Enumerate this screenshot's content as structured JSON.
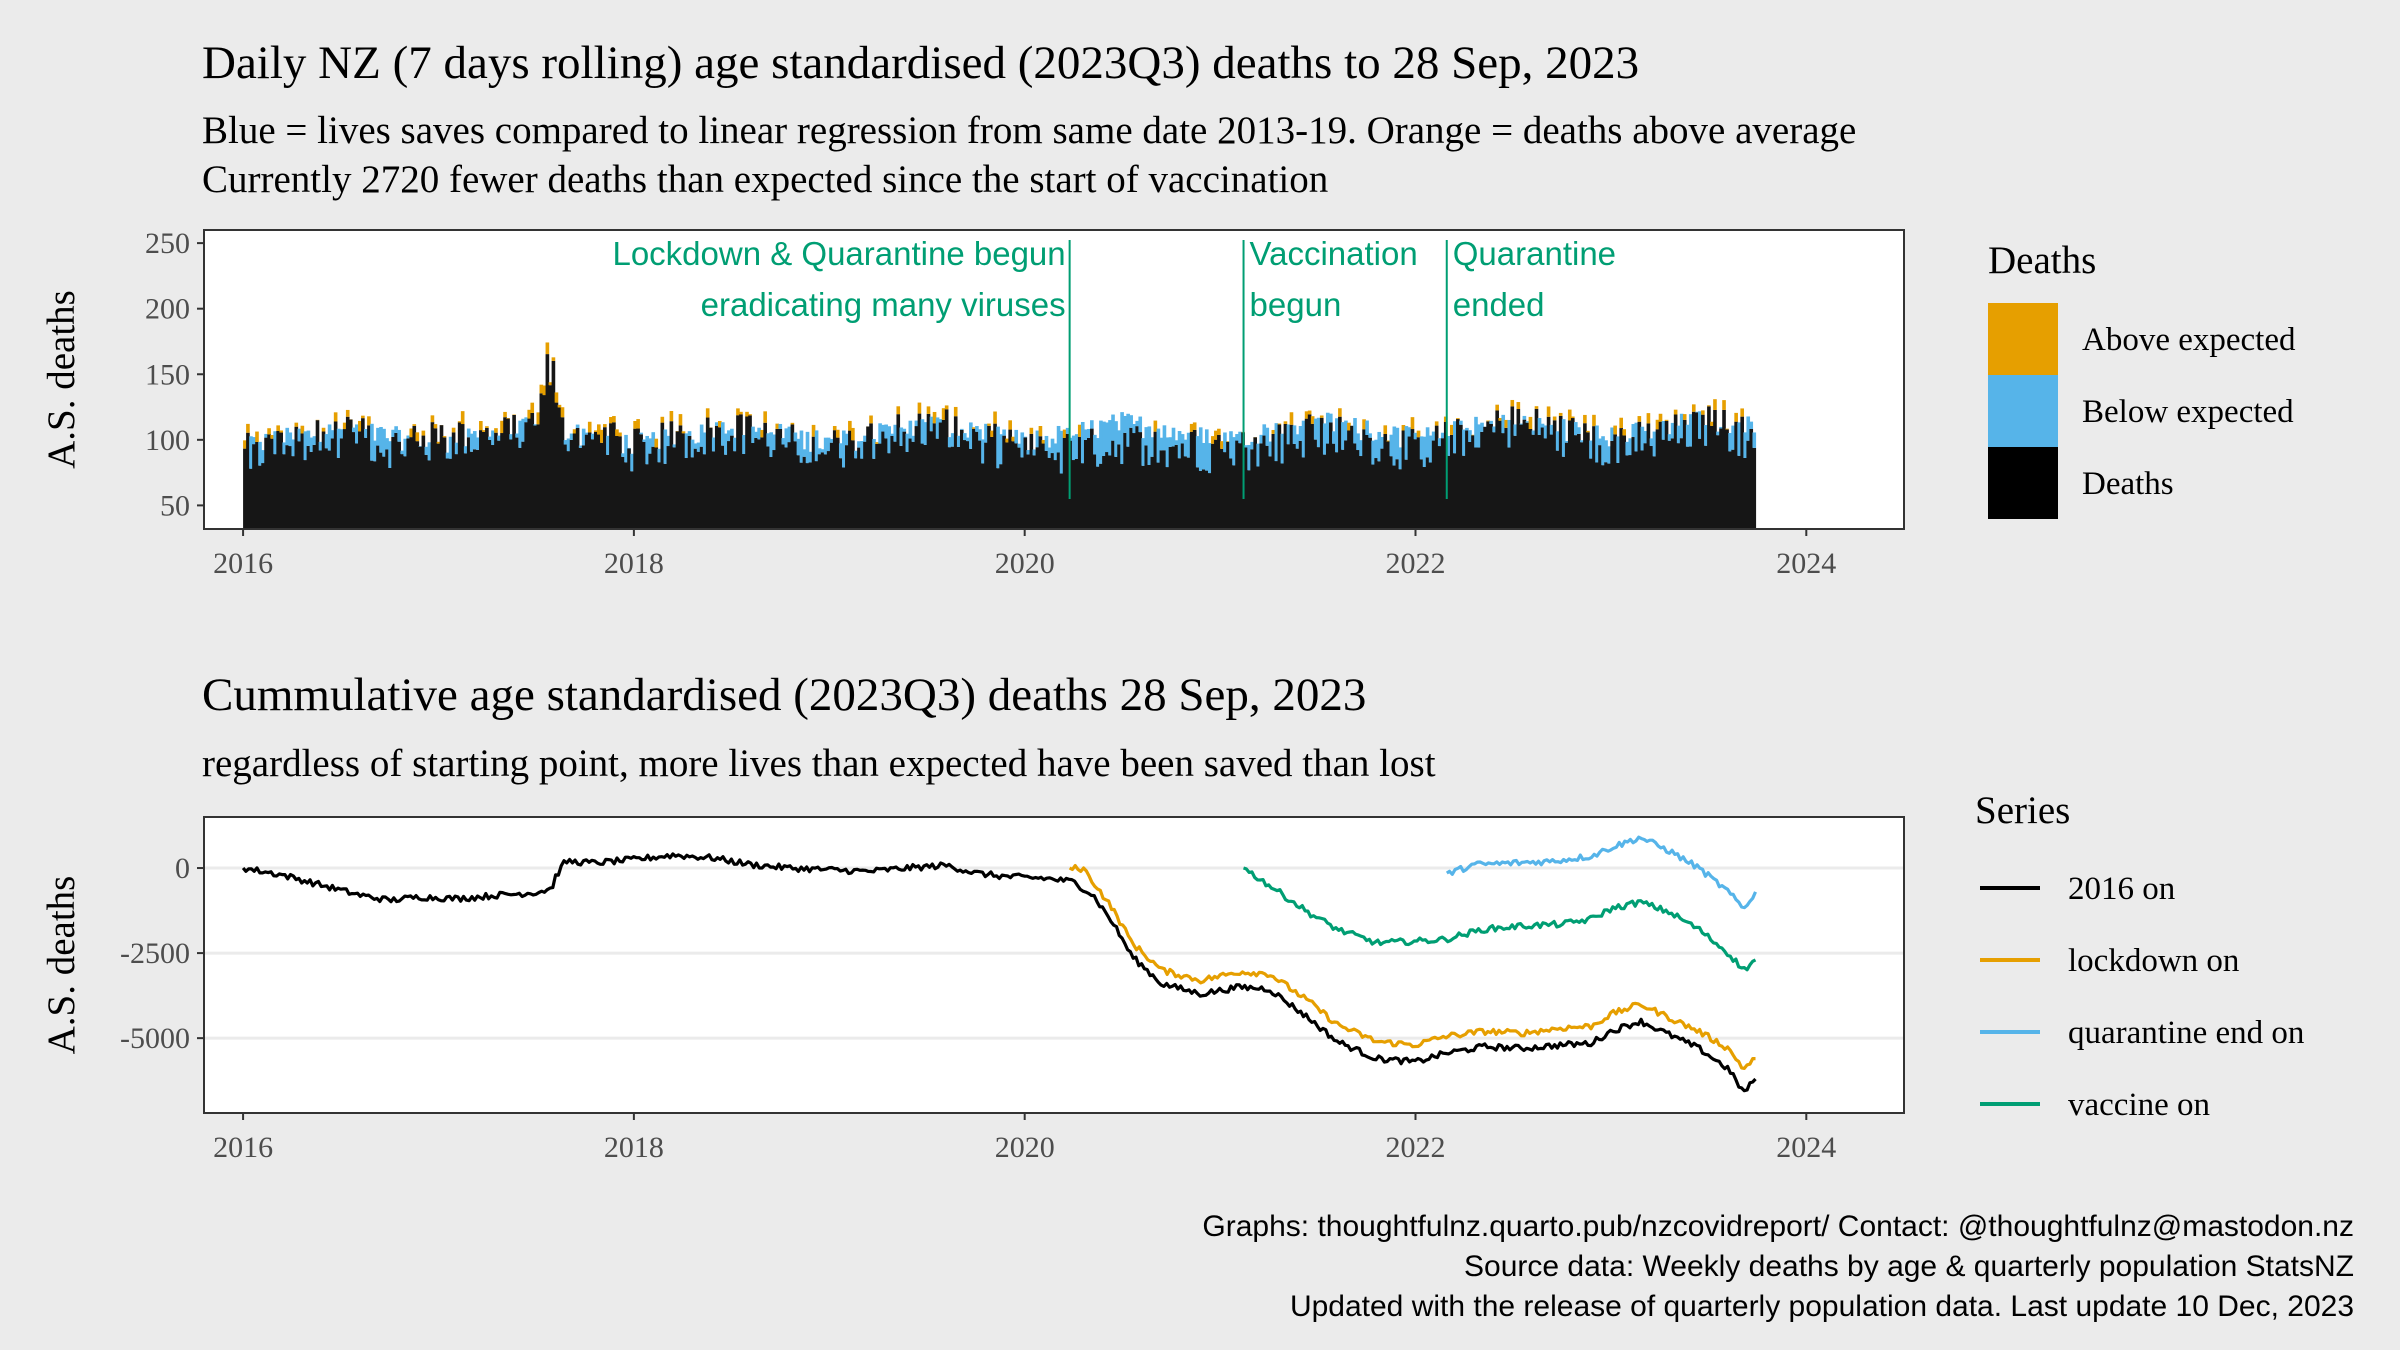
{
  "chart_data": [
    {
      "type": "bar",
      "title": "Daily NZ (7 days rolling) age standardised (2023Q3) deaths to 28 Sep, 2023",
      "subtitle_lines": [
        "Blue = lives saves compared to linear regression from same date 2013-19. Orange = deaths above average",
        "Currently 2720 fewer deaths than expected since the start of vaccination"
      ],
      "ylabel": "A.S. deaths",
      "xlabel": "",
      "xlim": [
        2015.8,
        2024.5
      ],
      "ylim": [
        32,
        260
      ],
      "x_ticks": [
        2016,
        2018,
        2020,
        2022,
        2024
      ],
      "y_ticks": [
        50,
        100,
        150,
        200,
        250
      ],
      "legend": {
        "title": "Deaths",
        "placement": "right",
        "entries": [
          {
            "label": "Above expected",
            "color": "#E69F00"
          },
          {
            "label": "Below expected",
            "color": "#56B4E9"
          },
          {
            "label": "Deaths",
            "color": "#000000"
          }
        ]
      },
      "annotations": [
        {
          "x": 2020.23,
          "lines": [
            "Lockdown & Quarantine begun",
            "eradicating many viruses"
          ],
          "align": "right",
          "color": "#009E73"
        },
        {
          "x": 2021.12,
          "lines": [
            "Vaccination",
            "begun"
          ],
          "align": "left",
          "color": "#009E73"
        },
        {
          "x": 2022.16,
          "lines": [
            "Quarantine",
            "ended"
          ],
          "align": "left",
          "color": "#009E73"
        }
      ],
      "series_summary": {
        "deaths": [
          [
            2016.0,
            88
          ],
          [
            2016.25,
            97
          ],
          [
            2016.5,
            103
          ],
          [
            2016.75,
            95
          ],
          [
            2017.0,
            98
          ],
          [
            2017.25,
            100
          ],
          [
            2017.5,
            108
          ],
          [
            2017.75,
            104
          ],
          [
            2018.0,
            92
          ],
          [
            2018.25,
            100
          ],
          [
            2018.5,
            106
          ],
          [
            2018.75,
            97
          ],
          [
            2019.0,
            92
          ],
          [
            2019.25,
            103
          ],
          [
            2019.5,
            110
          ],
          [
            2019.75,
            100
          ],
          [
            2020.0,
            88
          ],
          [
            2020.25,
            90
          ],
          [
            2020.5,
            98
          ],
          [
            2020.75,
            95
          ],
          [
            2021.0,
            90
          ],
          [
            2021.25,
            96
          ],
          [
            2021.5,
            105
          ],
          [
            2021.75,
            98
          ],
          [
            2022.0,
            92
          ],
          [
            2022.25,
            102
          ],
          [
            2022.5,
            112
          ],
          [
            2022.75,
            104
          ],
          [
            2023.0,
            96
          ],
          [
            2023.25,
            101
          ],
          [
            2023.5,
            110
          ],
          [
            2023.75,
            100
          ]
        ],
        "expected": [
          [
            2016.0,
            95
          ],
          [
            2016.5,
            108
          ],
          [
            2017.0,
            96
          ],
          [
            2017.5,
            110
          ],
          [
            2018.0,
            96
          ],
          [
            2018.5,
            110
          ],
          [
            2019.0,
            97
          ],
          [
            2019.5,
            111
          ],
          [
            2020.0,
            98
          ],
          [
            2020.5,
            113
          ],
          [
            2021.0,
            99
          ],
          [
            2021.5,
            114
          ],
          [
            2022.0,
            100
          ],
          [
            2022.5,
            115
          ],
          [
            2023.0,
            101
          ],
          [
            2023.5,
            116
          ],
          [
            2023.75,
            108
          ]
        ],
        "x_end": 2023.74
      }
    },
    {
      "type": "line",
      "title": "Cummulative age standardised (2023Q3) deaths 28 Sep, 2023",
      "subtitle": "regardless of starting point, more lives than expected have been saved than lost",
      "ylabel": "A.S. deaths",
      "xlabel": "",
      "xlim": [
        2015.8,
        2024.5
      ],
      "ylim": [
        -7200,
        1500
      ],
      "x_ticks": [
        2016,
        2018,
        2020,
        2022,
        2024
      ],
      "y_ticks": [
        0,
        -2500,
        -5000
      ],
      "legend": {
        "title": "Series",
        "placement": "right"
      },
      "series": [
        {
          "name": "2016 on",
          "color": "#000000",
          "points": [
            [
              2016.0,
              0
            ],
            [
              2016.2,
              -200
            ],
            [
              2016.4,
              -500
            ],
            [
              2016.6,
              -800
            ],
            [
              2016.75,
              -950
            ],
            [
              2016.9,
              -850
            ],
            [
              2017.1,
              -900
            ],
            [
              2017.3,
              -800
            ],
            [
              2017.5,
              -720
            ],
            [
              2017.58,
              -600
            ],
            [
              2017.6,
              -250
            ],
            [
              2017.65,
              200
            ],
            [
              2017.8,
              150
            ],
            [
              2018.0,
              250
            ],
            [
              2018.2,
              380
            ],
            [
              2018.4,
              300
            ],
            [
              2018.6,
              100
            ],
            [
              2018.8,
              0
            ],
            [
              2019.0,
              -50
            ],
            [
              2019.2,
              -100
            ],
            [
              2019.4,
              0
            ],
            [
              2019.6,
              80
            ],
            [
              2019.75,
              -150
            ],
            [
              2019.9,
              -250
            ],
            [
              2020.1,
              -300
            ],
            [
              2020.25,
              -400
            ],
            [
              2020.35,
              -800
            ],
            [
              2020.45,
              -1600
            ],
            [
              2020.55,
              -2600
            ],
            [
              2020.7,
              -3400
            ],
            [
              2020.9,
              -3700
            ],
            [
              2021.1,
              -3500
            ],
            [
              2021.25,
              -3550
            ],
            [
              2021.45,
              -4400
            ],
            [
              2021.6,
              -5100
            ],
            [
              2021.8,
              -5600
            ],
            [
              2022.0,
              -5700
            ],
            [
              2022.15,
              -5450
            ],
            [
              2022.35,
              -5250
            ],
            [
              2022.55,
              -5300
            ],
            [
              2022.75,
              -5200
            ],
            [
              2022.9,
              -5150
            ],
            [
              2023.0,
              -4800
            ],
            [
              2023.15,
              -4500
            ],
            [
              2023.3,
              -4900
            ],
            [
              2023.45,
              -5300
            ],
            [
              2023.6,
              -5900
            ],
            [
              2023.68,
              -6600
            ],
            [
              2023.74,
              -6200
            ]
          ]
        },
        {
          "name": "lockdown on",
          "color": "#E69F00",
          "points": [
            [
              2020.23,
              0
            ],
            [
              2020.3,
              -20
            ],
            [
              2020.35,
              -400
            ],
            [
              2020.45,
              -1200
            ],
            [
              2020.55,
              -2200
            ],
            [
              2020.7,
              -3000
            ],
            [
              2020.9,
              -3300
            ],
            [
              2021.1,
              -3050
            ],
            [
              2021.25,
              -3100
            ],
            [
              2021.45,
              -3900
            ],
            [
              2021.6,
              -4600
            ],
            [
              2021.8,
              -5100
            ],
            [
              2022.0,
              -5200
            ],
            [
              2022.15,
              -4950
            ],
            [
              2022.35,
              -4800
            ],
            [
              2022.55,
              -4850
            ],
            [
              2022.75,
              -4700
            ],
            [
              2022.9,
              -4650
            ],
            [
              2023.0,
              -4300
            ],
            [
              2023.15,
              -4000
            ],
            [
              2023.3,
              -4400
            ],
            [
              2023.45,
              -4800
            ],
            [
              2023.6,
              -5300
            ],
            [
              2023.68,
              -5900
            ],
            [
              2023.74,
              -5600
            ]
          ]
        },
        {
          "name": "quarantine end on",
          "color": "#56B4E9",
          "points": [
            [
              2022.16,
              -150
            ],
            [
              2022.2,
              -100
            ],
            [
              2022.3,
              100
            ],
            [
              2022.5,
              150
            ],
            [
              2022.7,
              200
            ],
            [
              2022.9,
              350
            ],
            [
              2023.0,
              600
            ],
            [
              2023.15,
              900
            ],
            [
              2023.3,
              500
            ],
            [
              2023.45,
              0
            ],
            [
              2023.6,
              -700
            ],
            [
              2023.68,
              -1200
            ],
            [
              2023.74,
              -700
            ]
          ]
        },
        {
          "name": "vaccine on",
          "color": "#009E73",
          "points": [
            [
              2021.12,
              0
            ],
            [
              2021.25,
              -500
            ],
            [
              2021.45,
              -1300
            ],
            [
              2021.6,
              -1800
            ],
            [
              2021.8,
              -2200
            ],
            [
              2022.0,
              -2150
            ],
            [
              2022.15,
              -2100
            ],
            [
              2022.35,
              -1800
            ],
            [
              2022.55,
              -1700
            ],
            [
              2022.75,
              -1650
            ],
            [
              2022.9,
              -1500
            ],
            [
              2023.0,
              -1200
            ],
            [
              2023.15,
              -1000
            ],
            [
              2023.3,
              -1300
            ],
            [
              2023.45,
              -1800
            ],
            [
              2023.6,
              -2500
            ],
            [
              2023.68,
              -3000
            ],
            [
              2023.74,
              -2700
            ]
          ]
        }
      ]
    }
  ],
  "caption": [
    "Graphs: thoughtfulnz.quarto.pub/nzcovidreport/ Contact: @thoughtfulnz@mastodon.nz",
    "Source data: Weekly deaths by age & quarterly population StatsNZ",
    "Updated with the release of quarterly population data. Last update 10 Dec, 2023"
  ]
}
